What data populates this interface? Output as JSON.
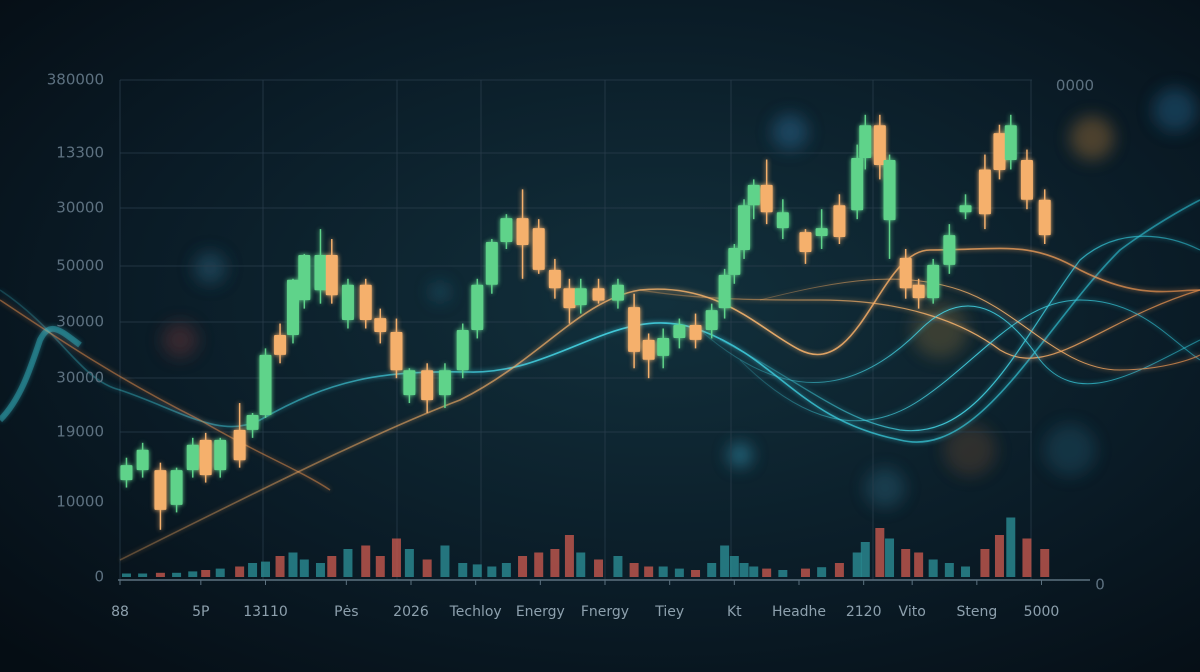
{
  "chart_data": {
    "type": "candlestick",
    "y_labels": [
      "380000",
      "13300",
      "30000",
      "50000",
      "30000",
      "30000",
      "19000",
      "10000",
      "0"
    ],
    "corner_labels": [
      "0000",
      "0"
    ],
    "xlim": [
      0,
      60
    ],
    "ylim": [
      0,
      100
    ],
    "xticks": [
      {
        "value": 0,
        "label": "88"
      },
      {
        "value": 5,
        "label": "5P"
      },
      {
        "value": 9,
        "label": "13110"
      },
      {
        "value": 14,
        "label": "Pės"
      },
      {
        "value": 18,
        "label": "2026"
      },
      {
        "value": 22,
        "label": "Techloy"
      },
      {
        "value": 26,
        "label": "Energy"
      },
      {
        "value": 30,
        "label": "Fnergy"
      },
      {
        "value": 34,
        "label": "Tiey"
      },
      {
        "value": 38,
        "label": "Kt"
      },
      {
        "value": 42,
        "label": "Headhe"
      },
      {
        "value": 46,
        "label": "2120"
      },
      {
        "value": 49,
        "label": "Vito"
      },
      {
        "value": 53,
        "label": "Steng"
      },
      {
        "value": 57,
        "label": "5000"
      }
    ],
    "candles": {
      "x": [
        0.4,
        1.4,
        2.5,
        3.5,
        4.5,
        5.3,
        6.2,
        7.4,
        8.2,
        9.0,
        9.9,
        10.7,
        11.4,
        12.4,
        13.1,
        14.1,
        15.2,
        16.1,
        17.1,
        17.9,
        19.0,
        20.1,
        21.2,
        22.1,
        23.0,
        23.9,
        24.9,
        25.9,
        26.9,
        27.8,
        28.5,
        29.6,
        30.8,
        31.8,
        32.7,
        33.6,
        34.6,
        35.6,
        36.6,
        37.4,
        38.0,
        38.6,
        39.2,
        40.0,
        41.0,
        42.4,
        43.4,
        44.5,
        45.6,
        46.1,
        47.0,
        47.6,
        48.6,
        49.4,
        50.3,
        51.3,
        52.3,
        53.5,
        54.4,
        55.1,
        56.1,
        57.2
      ],
      "open": [
        19.5,
        21.5,
        21.5,
        14.5,
        21.5,
        27.6,
        21.5,
        29.6,
        29.6,
        32.6,
        48.7,
        48.7,
        55.7,
        57.7,
        64.8,
        51.7,
        58.8,
        52.1,
        49.3,
        36.6,
        41.6,
        36.6,
        41.6,
        49.7,
        58.8,
        67.4,
        72.2,
        70.2,
        61.8,
        58.1,
        54.7,
        58.1,
        55.6,
        54.3,
        47.7,
        44.5,
        48.1,
        50.7,
        49.7,
        54.1,
        60.8,
        65.8,
        74.8,
        78.9,
        70.2,
        69.4,
        68.6,
        74.8,
        73.8,
        84.3,
        90.9,
        71.8,
        64.2,
        58.8,
        56.1,
        62.8,
        73.4,
        82,
        89.3,
        83.9,
        83.9,
        75.9
      ],
      "high": [
        24,
        27,
        23,
        22,
        28,
        29,
        28,
        35,
        33,
        46,
        51,
        60,
        65,
        70,
        68,
        60,
        60,
        54,
        52,
        42,
        43,
        43,
        51,
        60,
        68,
        73,
        78,
        72,
        64,
        60,
        60,
        60,
        60,
        57,
        49,
        50,
        52,
        53,
        55,
        62,
        67,
        76,
        80,
        84,
        76,
        70,
        74,
        77,
        87,
        93,
        93,
        85,
        66,
        60,
        64,
        71,
        77,
        85,
        91,
        93,
        86,
        78
      ],
      "low": [
        18,
        20,
        9.5,
        13,
        20,
        19,
        20,
        22,
        28,
        32,
        43,
        47,
        54,
        55,
        55,
        50,
        50,
        47,
        40,
        35,
        33,
        34,
        40,
        48,
        57,
        66,
        60,
        61,
        56,
        51,
        53,
        55,
        54,
        42,
        40,
        42,
        46,
        46,
        48,
        52,
        59,
        64,
        72,
        71,
        68,
        63,
        66,
        67,
        72,
        82,
        80,
        64,
        56,
        54,
        55,
        61,
        72,
        70,
        80,
        82,
        74,
        67
      ],
      "close": [
        22.5,
        25.6,
        13.5,
        21.5,
        26.6,
        20.5,
        27.6,
        23.5,
        32.6,
        44.7,
        44.7,
        59.8,
        64.8,
        64.8,
        56.7,
        58.8,
        51.7,
        49.3,
        41.6,
        41.6,
        35.6,
        41.6,
        49.7,
        58.8,
        67.4,
        72.2,
        66.8,
        61.8,
        58.1,
        54.1,
        58.1,
        55.6,
        58.8,
        45.3,
        43.7,
        48.1,
        50.7,
        47.7,
        53.7,
        60.8,
        66.2,
        74.8,
        78.9,
        73.4,
        73.4,
        65.4,
        70.2,
        68.4,
        84.3,
        90.9,
        82.9,
        83.9,
        58.1,
        56.1,
        62.8,
        68.8,
        74.8,
        73,
        81.9,
        90.9,
        75.9,
        68.8
      ]
    },
    "up_color": "#5fd38a",
    "down_color": "#f5b06c",
    "volume": {
      "ylim": [
        0,
        100
      ],
      "values": [
        5,
        5,
        6,
        6,
        8,
        10,
        12,
        15,
        20,
        22,
        30,
        35,
        25,
        20,
        30,
        40,
        45,
        30,
        55,
        40,
        25,
        45,
        20,
        18,
        15,
        20,
        30,
        35,
        40,
        60,
        35,
        25,
        30,
        20,
        15,
        15,
        12,
        10,
        20,
        45,
        30,
        20,
        15,
        12,
        10,
        12,
        14,
        20,
        35,
        50,
        70,
        55,
        40,
        35,
        25,
        20,
        15,
        40,
        60,
        85,
        55,
        40
      ],
      "up_color": "#2b8c93",
      "down_color": "#c4574e"
    }
  }
}
